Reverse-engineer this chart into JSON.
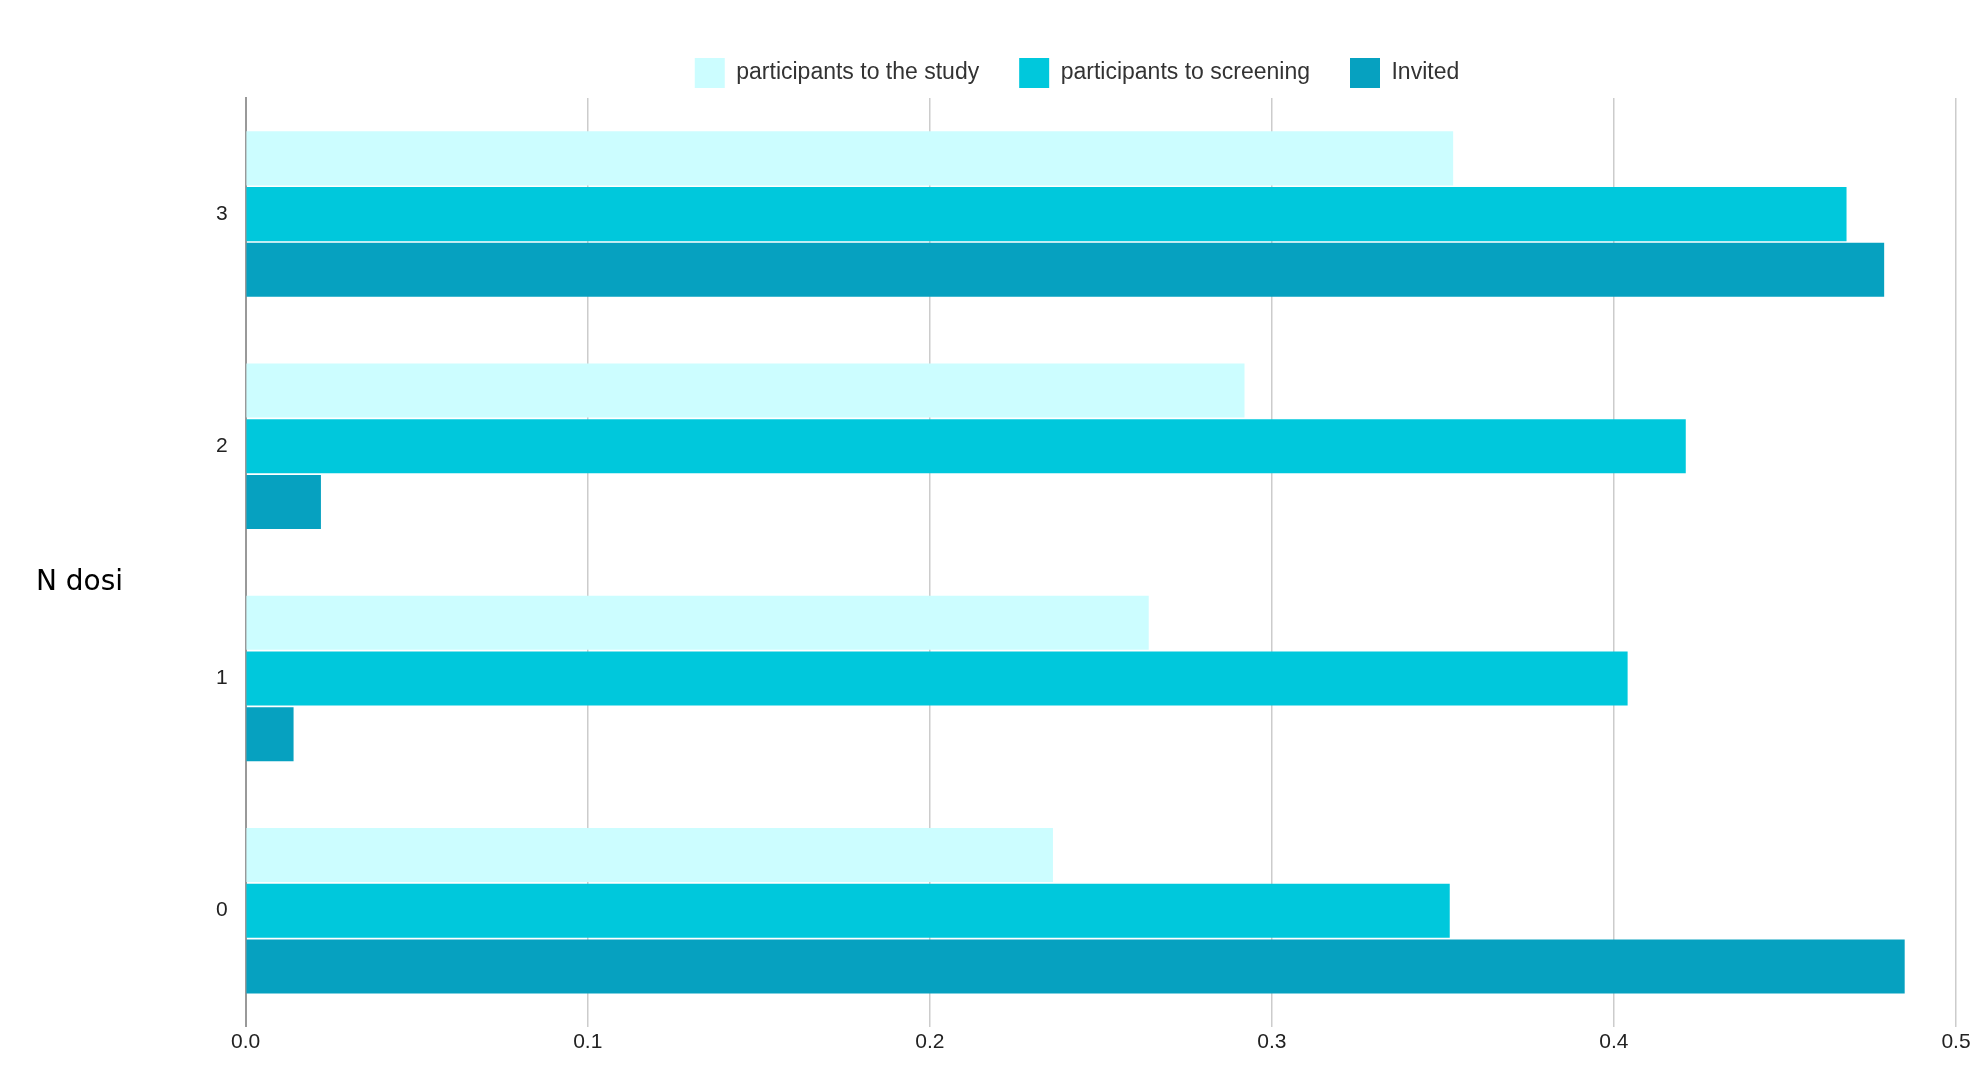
{
  "chart_data": {
    "type": "bar",
    "orientation": "horizontal",
    "ylabel": "N dosi",
    "categories": [
      "3",
      "2",
      "1",
      "0"
    ],
    "series": [
      {
        "name": "participants to the study",
        "color": "#ccfdff",
        "values": [
          0.353,
          0.292,
          0.264,
          0.236
        ]
      },
      {
        "name": "participants to screening",
        "color": "#00c8dc",
        "values": [
          0.468,
          0.421,
          0.404,
          0.352
        ]
      },
      {
        "name": "Invited",
        "color": "#06a1c0",
        "values": [
          0.479,
          0.022,
          0.014,
          0.485
        ]
      }
    ],
    "xlim": [
      0,
      0.5
    ],
    "xticks": [
      {
        "value": 0,
        "label": "0.0"
      },
      0.1,
      0.2,
      0.3,
      0.4,
      0.5
    ],
    "grid": "x",
    "legend": "top"
  }
}
